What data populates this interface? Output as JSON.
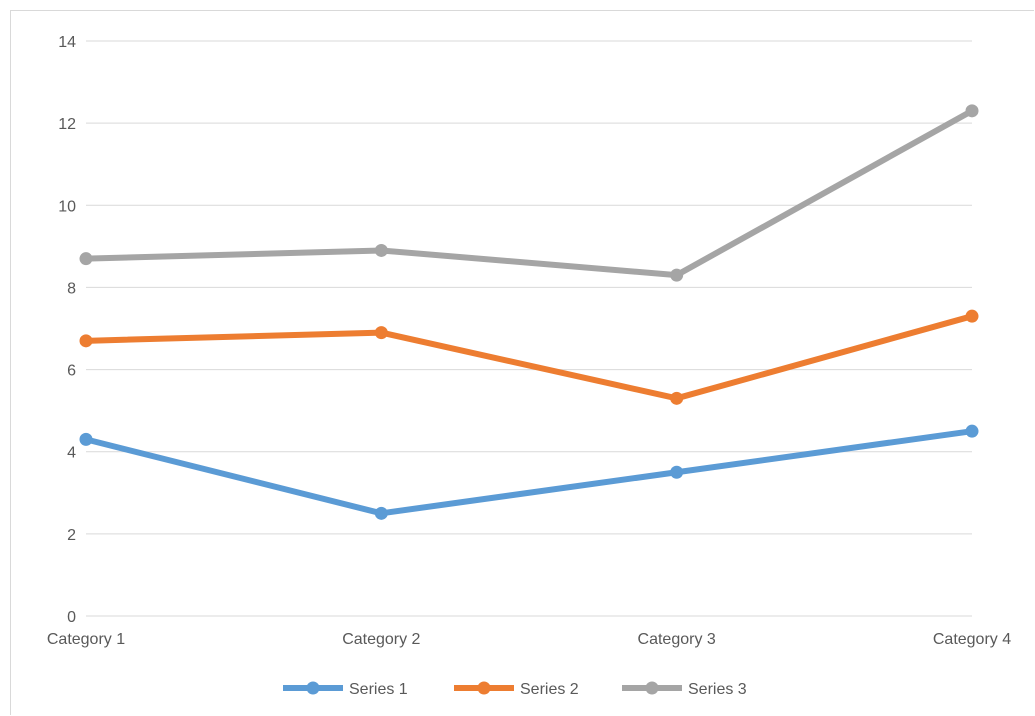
{
  "chart_data": {
    "type": "line",
    "categories": [
      "Category 1",
      "Category 2",
      "Category 3",
      "Category 4"
    ],
    "series": [
      {
        "name": "Series 1",
        "values": [
          4.3,
          2.5,
          3.5,
          4.5
        ],
        "color": "#5b9bd5"
      },
      {
        "name": "Series 2",
        "values": [
          6.7,
          6.9,
          5.3,
          7.3
        ],
        "color": "#ed7d31"
      },
      {
        "name": "Series 3",
        "values": [
          8.7,
          8.9,
          8.3,
          12.3
        ],
        "color": "#a5a5a5"
      }
    ],
    "title": "",
    "xlabel": "",
    "ylabel": "",
    "ylim": [
      0,
      14
    ],
    "yticks": [
      "0",
      "2",
      "4",
      "6",
      "8",
      "10",
      "12",
      "14"
    ],
    "grid": true,
    "legend_position": "bottom",
    "colors": {
      "gridline": "#d9d9d9",
      "axis": "#d9d9d9",
      "text": "#595959"
    }
  }
}
